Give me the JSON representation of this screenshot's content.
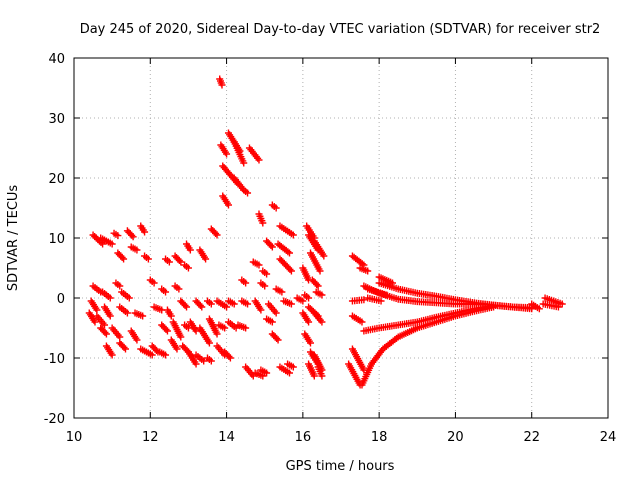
{
  "chart_data": {
    "type": "scatter",
    "title": "Day 245 of 2020, Sidereal Day-to-day VTEC variation (SDTVAR) for receiver str2",
    "xlabel": "GPS time / hours",
    "ylabel": "SDTVAR / TECUs",
    "xlim": [
      10,
      24
    ],
    "ylim": [
      -20,
      40
    ],
    "xticks": [
      10,
      12,
      14,
      16,
      18,
      20,
      22,
      24
    ],
    "yticks": [
      -20,
      -10,
      0,
      10,
      20,
      30,
      40
    ],
    "xtick_labels": [
      "10",
      "12",
      "14",
      "16",
      "18",
      "20",
      "22",
      "24"
    ],
    "ytick_labels": [
      "-20",
      "-10",
      "0",
      "10",
      "20",
      "30",
      "40"
    ],
    "grid": true,
    "marker": "+",
    "color": "#ff0000",
    "segments": [
      {
        "x": [
          10.5,
          10.75
        ],
        "y": [
          10.5,
          9.0
        ]
      },
      {
        "x": [
          10.7,
          11.0
        ],
        "y": [
          10.0,
          9.0
        ]
      },
      {
        "x": [
          11.05,
          11.15
        ],
        "y": [
          10.8,
          10.4
        ]
      },
      {
        "x": [
          11.4,
          11.55
        ],
        "y": [
          11.2,
          10.2
        ]
      },
      {
        "x": [
          11.75,
          11.85
        ],
        "y": [
          12.0,
          11.0
        ]
      },
      {
        "x": [
          11.15,
          11.3
        ],
        "y": [
          7.5,
          6.5
        ]
      },
      {
        "x": [
          11.5,
          11.65
        ],
        "y": [
          8.5,
          8.0
        ]
      },
      {
        "x": [
          11.85,
          11.95
        ],
        "y": [
          7.0,
          6.5
        ]
      },
      {
        "x": [
          12.4,
          12.5
        ],
        "y": [
          6.5,
          6.0
        ]
      },
      {
        "x": [
          12.65,
          12.8
        ],
        "y": [
          7.0,
          6.0
        ]
      },
      {
        "x": [
          12.95,
          13.05
        ],
        "y": [
          9.0,
          8.0
        ]
      },
      {
        "x": [
          13.3,
          13.45
        ],
        "y": [
          8.0,
          6.5
        ]
      },
      {
        "x": [
          13.6,
          13.75
        ],
        "y": [
          11.5,
          10.5
        ]
      },
      {
        "x": [
          12.9,
          13.0
        ],
        "y": [
          5.5,
          5.0
        ]
      },
      {
        "x": [
          10.5,
          10.7
        ],
        "y": [
          2.0,
          1.0
        ]
      },
      {
        "x": [
          10.75,
          10.95
        ],
        "y": [
          1.0,
          0.0
        ]
      },
      {
        "x": [
          11.1,
          11.2
        ],
        "y": [
          2.5,
          2.0
        ]
      },
      {
        "x": [
          11.25,
          11.45
        ],
        "y": [
          1.0,
          0.0
        ]
      },
      {
        "x": [
          12.0,
          12.1
        ],
        "y": [
          3.0,
          2.5
        ]
      },
      {
        "x": [
          12.3,
          12.4
        ],
        "y": [
          1.5,
          1.0
        ]
      },
      {
        "x": [
          12.65,
          12.75
        ],
        "y": [
          2.0,
          1.5
        ]
      },
      {
        "x": [
          10.45,
          10.6
        ],
        "y": [
          -0.5,
          -2.0
        ]
      },
      {
        "x": [
          10.4,
          10.55
        ],
        "y": [
          -2.5,
          -4.0
        ]
      },
      {
        "x": [
          10.6,
          10.8
        ],
        "y": [
          -3.0,
          -4.5
        ]
      },
      {
        "x": [
          10.8,
          10.95
        ],
        "y": [
          -1.5,
          -3.0
        ]
      },
      {
        "x": [
          11.2,
          11.4
        ],
        "y": [
          -1.5,
          -2.5
        ]
      },
      {
        "x": [
          11.6,
          11.8
        ],
        "y": [
          -2.5,
          -3.0
        ]
      },
      {
        "x": [
          12.1,
          12.3
        ],
        "y": [
          -1.5,
          -2.0
        ]
      },
      {
        "x": [
          12.45,
          12.55
        ],
        "y": [
          -2.0,
          -3.0
        ]
      },
      {
        "x": [
          12.8,
          12.95
        ],
        "y": [
          -0.5,
          -1.5
        ]
      },
      {
        "x": [
          13.2,
          13.35
        ],
        "y": [
          -0.5,
          -1.5
        ]
      },
      {
        "x": [
          13.5,
          13.6
        ],
        "y": [
          -0.5,
          -1.0
        ]
      },
      {
        "x": [
          10.7,
          10.85
        ],
        "y": [
          -5.0,
          -6.0
        ]
      },
      {
        "x": [
          11.0,
          11.2
        ],
        "y": [
          -5.0,
          -6.5
        ]
      },
      {
        "x": [
          11.5,
          11.65
        ],
        "y": [
          -5.5,
          -7.0
        ]
      },
      {
        "x": [
          12.3,
          12.45
        ],
        "y": [
          -4.5,
          -5.5
        ]
      },
      {
        "x": [
          12.6,
          12.8
        ],
        "y": [
          -4.0,
          -6.5
        ]
      },
      {
        "x": [
          12.9,
          13.0
        ],
        "y": [
          -4.5,
          -5.0
        ]
      },
      {
        "x": [
          13.05,
          13.2
        ],
        "y": [
          -4.0,
          -5.5
        ]
      },
      {
        "x": [
          13.3,
          13.55
        ],
        "y": [
          -5.0,
          -7.5
        ]
      },
      {
        "x": [
          13.55,
          13.75
        ],
        "y": [
          -3.5,
          -6.0
        ]
      },
      {
        "x": [
          13.8,
          13.95
        ],
        "y": [
          -4.5,
          -5.0
        ]
      },
      {
        "x": [
          10.85,
          11.0
        ],
        "y": [
          -8.0,
          -9.5
        ]
      },
      {
        "x": [
          11.2,
          11.35
        ],
        "y": [
          -7.5,
          -8.5
        ]
      },
      {
        "x": [
          11.75,
          12.05
        ],
        "y": [
          -8.5,
          -9.5
        ]
      },
      {
        "x": [
          12.05,
          12.2
        ],
        "y": [
          -8.0,
          -9.0
        ]
      },
      {
        "x": [
          12.25,
          12.4
        ],
        "y": [
          -9.0,
          -9.5
        ]
      },
      {
        "x": [
          12.55,
          12.7
        ],
        "y": [
          -7.0,
          -8.5
        ]
      },
      {
        "x": [
          12.85,
          13.0
        ],
        "y": [
          -8.0,
          -9.0
        ]
      },
      {
        "x": [
          13.0,
          13.2
        ],
        "y": [
          -9.0,
          -11.0
        ]
      },
      {
        "x": [
          13.2,
          13.4
        ],
        "y": [
          -9.5,
          -10.5
        ]
      },
      {
        "x": [
          13.5,
          13.6
        ],
        "y": [
          -10.0,
          -10.5
        ]
      },
      {
        "x": [
          13.75,
          13.95
        ],
        "y": [
          -8.0,
          -9.5
        ]
      },
      {
        "x": [
          13.95,
          14.1
        ],
        "y": [
          -9.0,
          -10.0
        ]
      },
      {
        "x": [
          13.82,
          13.88
        ],
        "y": [
          36.5,
          35.5
        ]
      },
      {
        "x": [
          13.85,
          14.0
        ],
        "y": [
          25.5,
          24.0
        ]
      },
      {
        "x": [
          14.05,
          14.35
        ],
        "y": [
          27.5,
          24.5
        ]
      },
      {
        "x": [
          14.2,
          14.45
        ],
        "y": [
          26.0,
          22.5
        ]
      },
      {
        "x": [
          14.6,
          14.85
        ],
        "y": [
          25.0,
          23.0
        ]
      },
      {
        "x": [
          13.9,
          14.3
        ],
        "y": [
          22.0,
          19.0
        ]
      },
      {
        "x": [
          14.2,
          14.45
        ],
        "y": [
          20.0,
          18.0
        ]
      },
      {
        "x": [
          13.9,
          14.05
        ],
        "y": [
          17.0,
          15.5
        ]
      },
      {
        "x": [
          14.45,
          14.55
        ],
        "y": [
          18.0,
          17.5
        ]
      },
      {
        "x": [
          14.85,
          14.95
        ],
        "y": [
          14.0,
          12.5
        ]
      },
      {
        "x": [
          15.2,
          15.3
        ],
        "y": [
          15.5,
          15.0
        ]
      },
      {
        "x": [
          15.4,
          15.75
        ],
        "y": [
          12.0,
          10.5
        ]
      },
      {
        "x": [
          14.7,
          14.85
        ],
        "y": [
          6.0,
          5.5
        ]
      },
      {
        "x": [
          14.95,
          15.05
        ],
        "y": [
          4.5,
          4.0
        ]
      },
      {
        "x": [
          15.05,
          15.2
        ],
        "y": [
          9.5,
          8.5
        ]
      },
      {
        "x": [
          15.35,
          15.65
        ],
        "y": [
          9.0,
          7.5
        ]
      },
      {
        "x": [
          15.4,
          15.7
        ],
        "y": [
          6.5,
          4.5
        ]
      },
      {
        "x": [
          14.4,
          14.5
        ],
        "y": [
          3.0,
          2.5
        ]
      },
      {
        "x": [
          14.9,
          15.0
        ],
        "y": [
          2.5,
          2.0
        ]
      },
      {
        "x": [
          15.3,
          15.45
        ],
        "y": [
          1.5,
          1.0
        ]
      },
      {
        "x": [
          13.75,
          14.0
        ],
        "y": [
          -0.5,
          -1.5
        ]
      },
      {
        "x": [
          14.05,
          14.2
        ],
        "y": [
          -0.5,
          -1.0
        ]
      },
      {
        "x": [
          14.4,
          14.55
        ],
        "y": [
          -0.5,
          -1.0
        ]
      },
      {
        "x": [
          14.75,
          14.9
        ],
        "y": [
          -0.5,
          -2.0
        ]
      },
      {
        "x": [
          15.1,
          15.3
        ],
        "y": [
          -1.0,
          -2.5
        ]
      },
      {
        "x": [
          15.5,
          15.7
        ],
        "y": [
          -0.5,
          -1.0
        ]
      },
      {
        "x": [
          15.85,
          16.0
        ],
        "y": [
          0.0,
          -0.5
        ]
      },
      {
        "x": [
          14.05,
          14.25
        ],
        "y": [
          -4.0,
          -5.0
        ]
      },
      {
        "x": [
          14.3,
          14.5
        ],
        "y": [
          -4.5,
          -5.0
        ]
      },
      {
        "x": [
          15.05,
          15.2
        ],
        "y": [
          -3.5,
          -4.0
        ]
      },
      {
        "x": [
          15.2,
          15.35
        ],
        "y": [
          -6.0,
          -7.0
        ]
      },
      {
        "x": [
          14.5,
          14.7
        ],
        "y": [
          -11.5,
          -13.0
        ]
      },
      {
        "x": [
          14.75,
          14.95
        ],
        "y": [
          -12.5,
          -13.0
        ]
      },
      {
        "x": [
          14.9,
          15.05
        ],
        "y": [
          -12.0,
          -12.5
        ]
      },
      {
        "x": [
          15.4,
          15.65
        ],
        "y": [
          -11.5,
          -12.5
        ]
      },
      {
        "x": [
          15.6,
          15.75
        ],
        "y": [
          -11.0,
          -11.5
        ]
      },
      {
        "x": [
          16.1,
          16.3
        ],
        "y": [
          12.0,
          10.0
        ]
      },
      {
        "x": [
          16.15,
          16.4
        ],
        "y": [
          10.5,
          8.0
        ]
      },
      {
        "x": [
          16.3,
          16.55
        ],
        "y": [
          9.5,
          7.0
        ]
      },
      {
        "x": [
          16.2,
          16.45
        ],
        "y": [
          7.5,
          4.5
        ]
      },
      {
        "x": [
          16.0,
          16.15
        ],
        "y": [
          5.0,
          3.0
        ]
      },
      {
        "x": [
          16.25,
          16.4
        ],
        "y": [
          3.0,
          2.0
        ]
      },
      {
        "x": [
          16.05,
          16.15
        ],
        "y": [
          0.5,
          0.0
        ]
      },
      {
        "x": [
          16.35,
          16.5
        ],
        "y": [
          1.0,
          0.5
        ]
      },
      {
        "x": [
          16.0,
          16.15
        ],
        "y": [
          -2.5,
          -4.0
        ]
      },
      {
        "x": [
          16.15,
          16.4
        ],
        "y": [
          -1.5,
          -3.0
        ]
      },
      {
        "x": [
          16.3,
          16.5
        ],
        "y": [
          -2.5,
          -4.0
        ]
      },
      {
        "x": [
          16.05,
          16.2
        ],
        "y": [
          -6.0,
          -7.5
        ]
      },
      {
        "x": [
          16.2,
          16.4
        ],
        "y": [
          -9.0,
          -11.0
        ]
      },
      {
        "x": [
          16.15,
          16.3
        ],
        "y": [
          -11.0,
          -13.0
        ]
      },
      {
        "x": [
          16.3,
          16.5
        ],
        "y": [
          -9.5,
          -12.0
        ]
      },
      {
        "x": [
          16.4,
          16.5
        ],
        "y": [
          -11.5,
          -13.0
        ]
      },
      {
        "x": [
          17.3,
          17.6
        ],
        "y": [
          7.0,
          5.5
        ]
      },
      {
        "x": [
          17.5,
          17.7
        ],
        "y": [
          5.0,
          4.5
        ]
      },
      {
        "x": [
          17.3,
          17.6
        ],
        "y": [
          -0.5,
          -0.3
        ]
      },
      {
        "x": [
          17.3,
          17.55
        ],
        "y": [
          -3.0,
          -4.0
        ]
      },
      {
        "x": [
          17.2,
          17.5
        ],
        "y": [
          -11.0,
          -14.5
        ]
      },
      {
        "x": [
          17.3,
          17.6
        ],
        "y": [
          -8.5,
          -12.0
        ]
      },
      {
        "x": [
          18.0,
          18.35
        ],
        "y": [
          3.5,
          2.5
        ]
      },
      {
        "x": [
          17.7,
          18.2
        ],
        "y": [
          1.5,
          0.5
        ]
      },
      {
        "x": [
          17.7,
          18.05
        ],
        "y": [
          0.0,
          -0.5
        ]
      }
    ],
    "curves": [
      {
        "x": [
          18.0,
          18.5,
          19.0,
          19.5,
          20.0,
          20.5,
          21.0,
          21.5,
          22.0
        ],
        "y": [
          2.5,
          1.5,
          0.8,
          0.3,
          -0.3,
          -0.8,
          -1.2,
          -1.5,
          -1.8
        ]
      },
      {
        "x": [
          17.6,
          18.0,
          18.5,
          19.0,
          19.5,
          20.0,
          20.5,
          21.0
        ],
        "y": [
          2.0,
          0.8,
          -0.2,
          -0.6,
          -0.8,
          -1.0,
          -1.0,
          -1.2
        ]
      },
      {
        "x": [
          17.6,
          18.0,
          18.5,
          19.0,
          19.5,
          20.0,
          20.5,
          21.0
        ],
        "y": [
          -5.5,
          -5.0,
          -4.5,
          -4.0,
          -3.2,
          -2.5,
          -1.8,
          -1.3
        ]
      },
      {
        "x": [
          17.55,
          17.8,
          18.1,
          18.5,
          19.0,
          19.5,
          20.0,
          20.5,
          21.0
        ],
        "y": [
          -14.5,
          -11.0,
          -8.5,
          -6.5,
          -5.0,
          -4.0,
          -3.0,
          -2.2,
          -1.5
        ]
      },
      {
        "x": [
          21.0,
          21.5,
          22.0
        ],
        "y": [
          -1.2,
          -1.5,
          -1.6
        ]
      },
      {
        "x": [
          22.0,
          22.2
        ],
        "y": [
          -1.0,
          -1.8
        ]
      },
      {
        "x": [
          22.35,
          22.8
        ],
        "y": [
          0.0,
          -1.0
        ]
      },
      {
        "x": [
          22.3,
          22.7
        ],
        "y": [
          -1.0,
          -1.5
        ]
      }
    ]
  }
}
